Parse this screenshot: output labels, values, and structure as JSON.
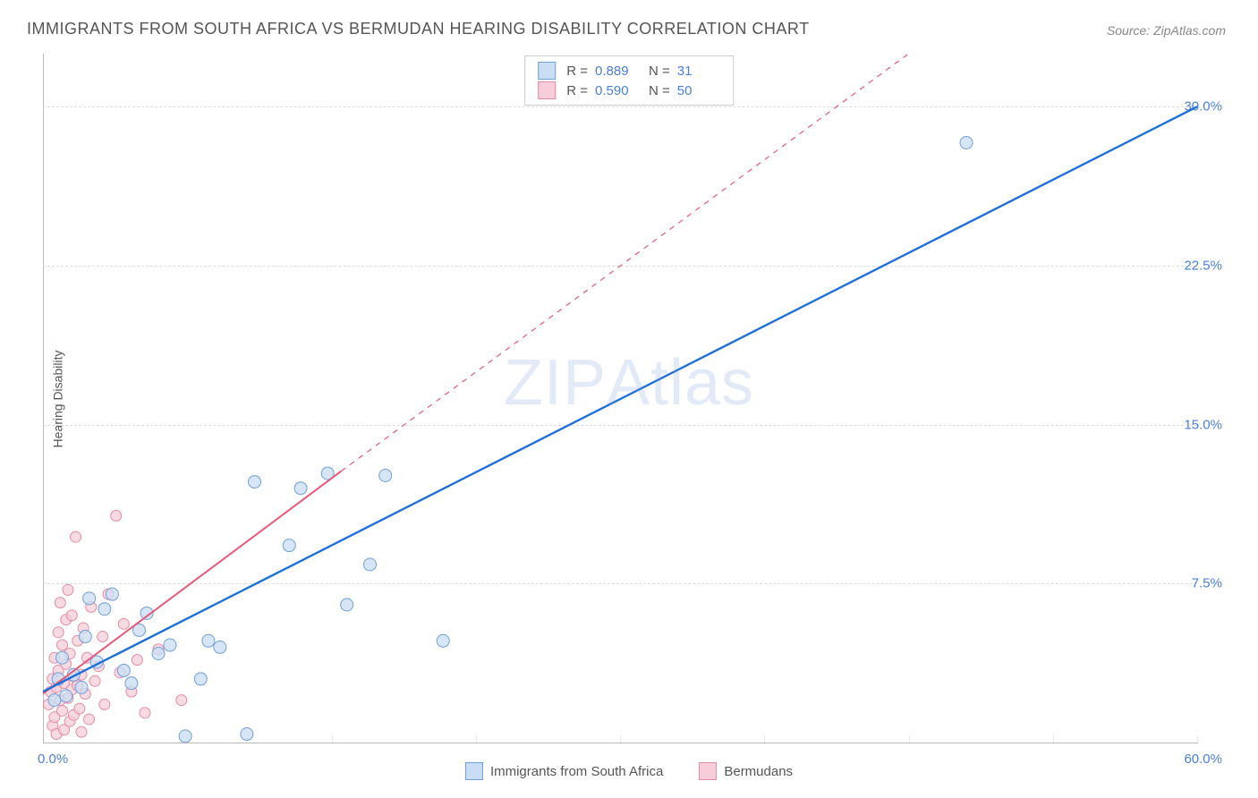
{
  "title": "IMMIGRANTS FROM SOUTH AFRICA VS BERMUDAN HEARING DISABILITY CORRELATION CHART",
  "source_label": "Source: ZipAtlas.com",
  "ylabel": "Hearing Disability",
  "watermark": "ZIPAtlas",
  "chart": {
    "type": "scatter",
    "xlim": [
      0,
      60
    ],
    "ylim": [
      0,
      32.5
    ],
    "x_tick_origin": "0.0%",
    "x_tick_end": "60.0%",
    "y_ticks": [
      {
        "v": 7.5,
        "label": "7.5%"
      },
      {
        "v": 15.0,
        "label": "15.0%"
      },
      {
        "v": 22.5,
        "label": "22.5%"
      },
      {
        "v": 30.0,
        "label": "30.0%"
      }
    ],
    "x_minor_ticks": [
      7.5,
      15,
      22.5,
      30,
      37.5,
      45,
      52.5,
      60
    ],
    "background_color": "#ffffff",
    "grid_color": "#dddddd",
    "marker_radius_blue": 7,
    "marker_radius_pink": 6,
    "line_width_blue": 2.4,
    "line_width_pink": 2.0,
    "series": [
      {
        "name": "Immigrants from South Africa",
        "fill": "#c9ddf4",
        "stroke": "#6f9fd8",
        "line_color": "#1e6fd9",
        "R": "0.889",
        "N": "31",
        "trend": {
          "x1": 0,
          "y1": 2.4,
          "x2": 60,
          "y2": 30.0
        },
        "points": [
          [
            0.6,
            2.0
          ],
          [
            0.8,
            3.0
          ],
          [
            1.2,
            2.2
          ],
          [
            1.0,
            4.0
          ],
          [
            1.6,
            3.2
          ],
          [
            2.0,
            2.6
          ],
          [
            2.4,
            6.8
          ],
          [
            2.8,
            3.8
          ],
          [
            3.2,
            6.3
          ],
          [
            2.2,
            5.0
          ],
          [
            3.6,
            7.0
          ],
          [
            4.2,
            3.4
          ],
          [
            4.6,
            2.8
          ],
          [
            5.0,
            5.3
          ],
          [
            5.4,
            6.1
          ],
          [
            6.0,
            4.2
          ],
          [
            6.6,
            4.6
          ],
          [
            7.4,
            0.3
          ],
          [
            8.2,
            3.0
          ],
          [
            8.6,
            4.8
          ],
          [
            9.2,
            4.5
          ],
          [
            10.6,
            0.4
          ],
          [
            11.0,
            12.3
          ],
          [
            12.8,
            9.3
          ],
          [
            13.4,
            12.0
          ],
          [
            14.8,
            12.7
          ],
          [
            15.8,
            6.5
          ],
          [
            17.0,
            8.4
          ],
          [
            17.8,
            12.6
          ],
          [
            20.8,
            4.8
          ],
          [
            48.0,
            28.3
          ]
        ]
      },
      {
        "name": "Bermudans",
        "fill": "#f6cdd8",
        "stroke": "#e48ca4",
        "line_color": "#e35a7a",
        "line_dash_extension": true,
        "R": "0.590",
        "N": "50",
        "trend_solid": {
          "x1": 0,
          "y1": 2.3,
          "x2": 15.5,
          "y2": 12.8
        },
        "trend_dash": {
          "x1": 15.5,
          "y1": 12.8,
          "x2": 45,
          "y2": 32.5
        },
        "points": [
          [
            0.3,
            1.8
          ],
          [
            0.4,
            2.4
          ],
          [
            0.5,
            0.8
          ],
          [
            0.5,
            3.0
          ],
          [
            0.6,
            1.2
          ],
          [
            0.6,
            4.0
          ],
          [
            0.7,
            2.6
          ],
          [
            0.7,
            0.4
          ],
          [
            0.8,
            3.4
          ],
          [
            0.8,
            5.2
          ],
          [
            0.9,
            2.0
          ],
          [
            0.9,
            6.6
          ],
          [
            1.0,
            1.5
          ],
          [
            1.0,
            4.6
          ],
          [
            1.1,
            2.8
          ],
          [
            1.1,
            0.6
          ],
          [
            1.2,
            3.7
          ],
          [
            1.2,
            5.8
          ],
          [
            1.3,
            2.1
          ],
          [
            1.3,
            7.2
          ],
          [
            1.4,
            1.0
          ],
          [
            1.4,
            4.2
          ],
          [
            1.5,
            2.5
          ],
          [
            1.5,
            6.0
          ],
          [
            1.6,
            3.1
          ],
          [
            1.6,
            1.3
          ],
          [
            1.7,
            9.7
          ],
          [
            1.8,
            2.7
          ],
          [
            1.8,
            4.8
          ],
          [
            1.9,
            1.6
          ],
          [
            2.0,
            3.2
          ],
          [
            2.0,
            0.5
          ],
          [
            2.1,
            5.4
          ],
          [
            2.2,
            2.3
          ],
          [
            2.3,
            4.0
          ],
          [
            2.4,
            1.1
          ],
          [
            2.5,
            6.4
          ],
          [
            2.7,
            2.9
          ],
          [
            2.9,
            3.6
          ],
          [
            3.1,
            5.0
          ],
          [
            3.2,
            1.8
          ],
          [
            3.4,
            7.0
          ],
          [
            3.8,
            10.7
          ],
          [
            4.0,
            3.3
          ],
          [
            4.2,
            5.6
          ],
          [
            4.6,
            2.4
          ],
          [
            4.9,
            3.9
          ],
          [
            5.3,
            1.4
          ],
          [
            6.0,
            4.4
          ],
          [
            7.2,
            2.0
          ]
        ]
      }
    ]
  },
  "legend_bottom": [
    {
      "label": "Immigrants from South Africa",
      "fill": "#c9ddf4",
      "stroke": "#6f9fd8"
    },
    {
      "label": "Bermudans",
      "fill": "#f6cdd8",
      "stroke": "#e48ca4"
    }
  ]
}
